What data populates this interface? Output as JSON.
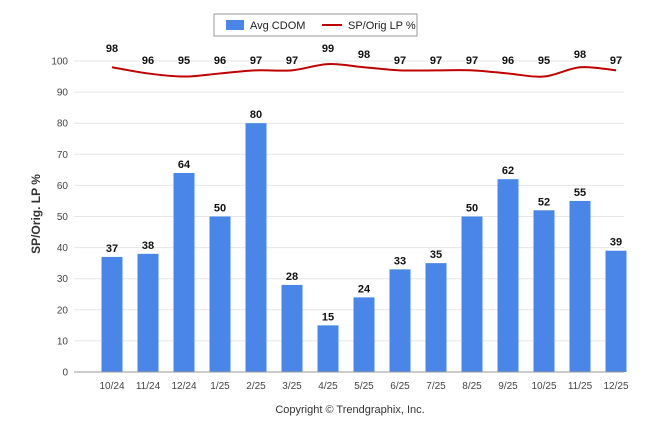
{
  "chart_data": {
    "type": "bar",
    "categories": [
      "10/24",
      "11/24",
      "12/24",
      "1/25",
      "2/25",
      "3/25",
      "4/25",
      "5/25",
      "6/25",
      "7/25",
      "8/25",
      "9/25",
      "10/25",
      "11/25",
      "12/25"
    ],
    "series": [
      {
        "name": "Avg CDOM",
        "type": "bar",
        "color": "#4a86e8",
        "values": [
          37,
          38,
          64,
          50,
          80,
          28,
          15,
          24,
          33,
          35,
          50,
          62,
          52,
          55,
          39
        ]
      },
      {
        "name": "SP/Orig LP %",
        "type": "line",
        "color": "#c00000",
        "values": [
          98,
          96,
          95,
          96,
          97,
          97,
          99,
          98,
          97,
          97,
          97,
          96,
          95,
          98,
          97
        ]
      }
    ],
    "ylabel": "SP/Orig. LP %",
    "ylim": [
      0,
      100
    ],
    "yticks": [
      0,
      10,
      20,
      30,
      40,
      50,
      60,
      70,
      80,
      90,
      100
    ],
    "grid": true,
    "legend_position": "top-center",
    "footer": "Copyright © Trendgraphix, Inc."
  }
}
